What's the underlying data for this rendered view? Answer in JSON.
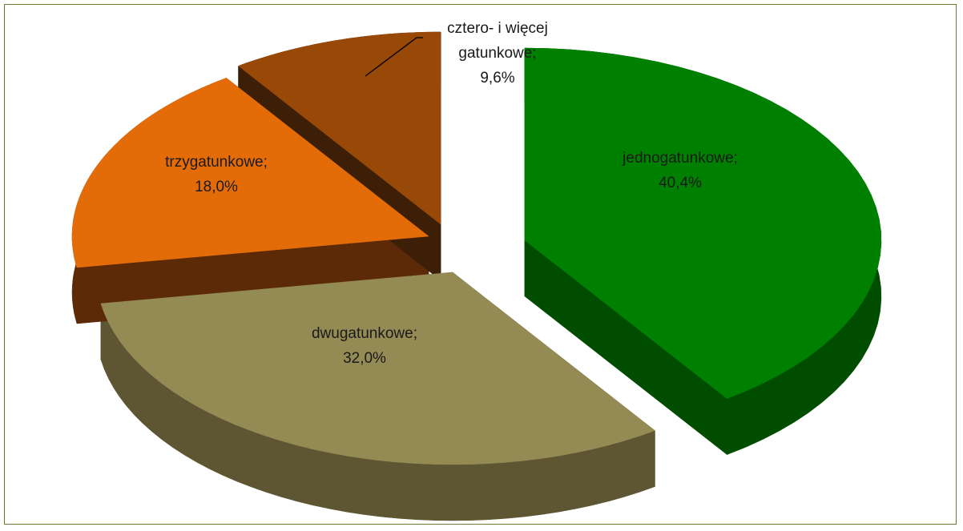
{
  "chart_data": {
    "type": "pie",
    "style": "3d-exploded",
    "title": "",
    "slices": [
      {
        "key": "jednogatunkowe",
        "label": "jednogatunkowe;",
        "value": 40.4,
        "value_label": "40,4%",
        "color": "#008000",
        "side_color": "#004d00"
      },
      {
        "key": "dwugatunkowe",
        "label": "dwugatunkowe;",
        "value": 32.0,
        "value_label": "32,0%",
        "color": "#948a54",
        "side_color": "#5e5632"
      },
      {
        "key": "trzygatunkowe",
        "label": "trzygatunkowe;",
        "value": 18.0,
        "value_label": "18,0%",
        "color": "#e36c09",
        "side_color": "#5c2a07"
      },
      {
        "key": "cztero",
        "label": "cztero- i więcej",
        "label2": "gatunkowe;",
        "value": 9.6,
        "value_label": "9,6%",
        "color": "#984807",
        "side_color": "#3d1f08"
      }
    ]
  }
}
